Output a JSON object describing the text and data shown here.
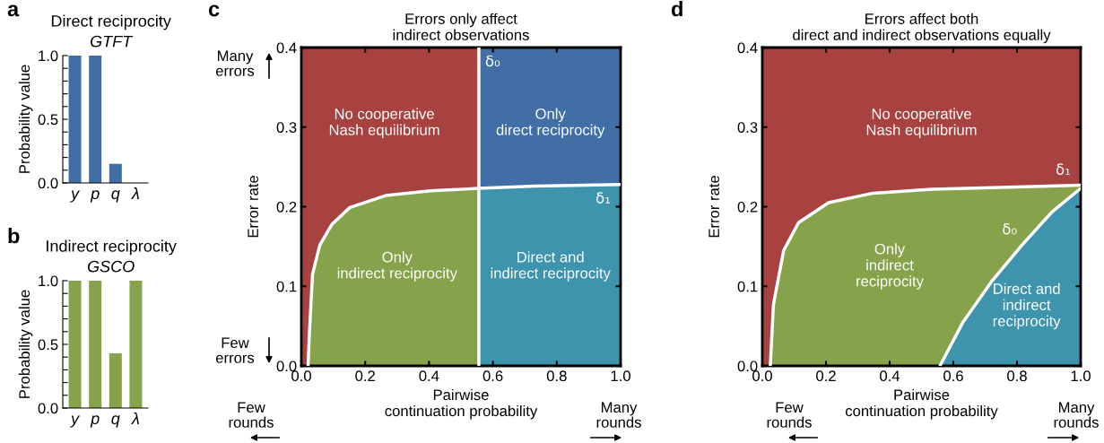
{
  "chart_data": [
    {
      "type": "bar",
      "title": "Direct reciprocity",
      "subtitle": "GTFT",
      "ylabel": "Probability value",
      "categories": [
        "y",
        "p",
        "q",
        "λ"
      ],
      "values": [
        1.0,
        1.0,
        0.15,
        0.0
      ],
      "color": "#416ea5",
      "ylim": [
        0,
        1.0
      ],
      "yticks": [
        {
          "value": 0,
          "label": "0.0"
        },
        {
          "value": 0.1,
          "label": null
        },
        {
          "value": 0.2,
          "label": null
        },
        {
          "value": 0.3,
          "label": null
        },
        {
          "value": 0.4,
          "label": null
        },
        {
          "value": 0.5,
          "label": "0.5"
        },
        {
          "value": 0.6,
          "label": null
        },
        {
          "value": 0.7,
          "label": null
        },
        {
          "value": 0.8,
          "label": null
        },
        {
          "value": 0.9,
          "label": null
        },
        {
          "value": 1.0,
          "label": "1.0"
        }
      ],
      "annotations": [
        "a"
      ],
      "grid": false,
      "legend": false
    },
    {
      "type": "bar",
      "title": "Indirect reciprocity",
      "subtitle": "GSCO",
      "ylabel": "Probability value",
      "categories": [
        "y",
        "p",
        "q",
        "λ"
      ],
      "values": [
        1.0,
        1.0,
        0.43,
        1.0
      ],
      "color": "#86a34b",
      "ylim": [
        0,
        1.0
      ],
      "yticks": [
        {
          "value": 0,
          "label": "0.0"
        },
        {
          "value": 0.1,
          "label": null
        },
        {
          "value": 0.2,
          "label": null
        },
        {
          "value": 0.3,
          "label": null
        },
        {
          "value": 0.4,
          "label": null
        },
        {
          "value": 0.5,
          "label": "0.5"
        },
        {
          "value": 0.6,
          "label": null
        },
        {
          "value": 0.7,
          "label": null
        },
        {
          "value": 0.8,
          "label": null
        },
        {
          "value": 0.9,
          "label": null
        },
        {
          "value": 1.0,
          "label": "1.0"
        }
      ],
      "annotations": [
        "b"
      ],
      "grid": false,
      "legend": false
    },
    {
      "type": "area",
      "title": "Errors only affect\nindirect observations",
      "xlabel": "Pairwise\ncontinuation probability",
      "ylabel": "Error rate",
      "xlim": [
        0,
        1.0
      ],
      "ylim": [
        0,
        0.4
      ],
      "xticks": [
        {
          "value": 0,
          "label": "0.0"
        },
        {
          "value": 0.2,
          "label": "0.2"
        },
        {
          "value": 0.4,
          "label": "0.4"
        },
        {
          "value": 0.6,
          "label": "0.6"
        },
        {
          "value": 0.8,
          "label": "0.8"
        },
        {
          "value": 1.0,
          "label": "1.0"
        }
      ],
      "yticks": [
        {
          "value": 0,
          "label": "0.0"
        },
        {
          "value": 0.1,
          "label": "0.1"
        },
        {
          "value": 0.2,
          "label": "0.2"
        },
        {
          "value": 0.3,
          "label": "0.3"
        },
        {
          "value": 0.4,
          "label": "0.4"
        }
      ],
      "bands": [
        {
          "axis": "x",
          "from": 0,
          "to": 0.556,
          "color": "#a84240"
        },
        {
          "axis": "x",
          "from": 0.556,
          "to": 1.0,
          "color": "#416ea5"
        }
      ],
      "series": [
        {
          "type": "area",
          "color": "#86a34b",
          "x": [
            0.021,
            0.025,
            0.035,
            0.058,
            0.096,
            0.152,
            0.264,
            0.405,
            0.556
          ],
          "values": [
            0,
            0.039,
            0.115,
            0.152,
            0.178,
            0.199,
            0.214,
            0.22,
            0.223
          ]
        },
        {
          "type": "area",
          "color": "#3e94ad",
          "x": [
            0.556,
            0.733,
            1.0
          ],
          "values": [
            0.223,
            0.226,
            0.228
          ]
        },
        {
          "type": "line",
          "name": "δ₁",
          "color": "#ffffff",
          "x": [
            0.021,
            0.025,
            0.035,
            0.058,
            0.096,
            0.152,
            0.264,
            0.405,
            0.556,
            0.733,
            1.0
          ],
          "values": [
            0,
            0.039,
            0.115,
            0.152,
            0.178,
            0.199,
            0.214,
            0.22,
            0.223,
            0.226,
            0.228
          ]
        }
      ],
      "ref_lines": [
        {
          "axis": "x",
          "value": 0.556,
          "label": "δ₀",
          "color": "#ffffff"
        }
      ],
      "annotations": [
        "c",
        "Many\nerrors",
        "Few\nerrors",
        "Few\nrounds",
        "Many\nrounds",
        "No cooperative\nNash equilibrium",
        "Only\ndirect reciprocity",
        "Only\nindirect reciprocity",
        "Direct and\nindirect reciprocity"
      ],
      "grid": false,
      "legend": false
    },
    {
      "type": "area",
      "title": "Errors affect both\ndirect and indirect observations equally",
      "xlabel": "Pairwise\ncontinuation probability",
      "ylabel": "Error rate",
      "xlim": [
        0,
        1.0
      ],
      "ylim": [
        0,
        0.4
      ],
      "xticks": [
        {
          "value": 0,
          "label": "0.0"
        },
        {
          "value": 0.2,
          "label": "0.2"
        },
        {
          "value": 0.4,
          "label": "0.4"
        },
        {
          "value": 0.6,
          "label": "0.6"
        },
        {
          "value": 0.8,
          "label": "0.8"
        },
        {
          "value": 1.0,
          "label": "1.0"
        }
      ],
      "yticks": [
        {
          "value": 0,
          "label": "0.0"
        },
        {
          "value": 0.1,
          "label": "0.1"
        },
        {
          "value": 0.2,
          "label": "0.2"
        },
        {
          "value": 0.3,
          "label": "0.3"
        },
        {
          "value": 0.4,
          "label": "0.4"
        }
      ],
      "bands": [
        {
          "axis": "x",
          "from": 0,
          "to": 1.0,
          "color": "#a84240"
        }
      ],
      "series": [
        {
          "type": "area",
          "name": "δ₁",
          "color": "#86a34b",
          "x": [
            0.025,
            0.035,
            0.067,
            0.114,
            0.208,
            0.348,
            0.535,
            0.722,
            1.0
          ],
          "values": [
            0,
            0.077,
            0.145,
            0.18,
            0.205,
            0.217,
            0.222,
            0.224,
            0.227
          ]
        },
        {
          "type": "area",
          "name": "δ₀",
          "color": "#3e94ad",
          "x": [
            0.558,
            0.629,
            0.722,
            0.816,
            0.909,
            1.0
          ],
          "values": [
            0,
            0.054,
            0.107,
            0.152,
            0.193,
            0.223
          ]
        }
      ],
      "annotations": [
        "d",
        "Few\nrounds",
        "Many\nrounds",
        "No cooperative\nNash equilibrium",
        "Only\nindirect\nreciprocity",
        "Direct and\nindirect\nreciprocity"
      ],
      "grid": false,
      "legend": false
    }
  ]
}
